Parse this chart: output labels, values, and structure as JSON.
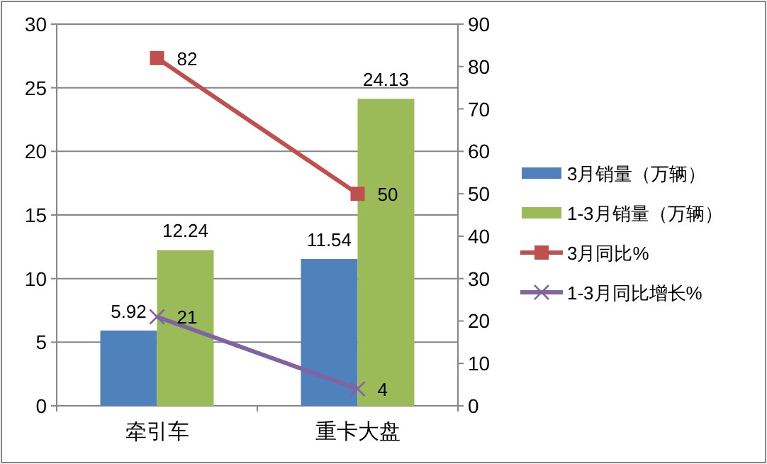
{
  "chart_data": {
    "type": "bar",
    "categories": [
      "牵引车",
      "重卡大盘"
    ],
    "series": [
      {
        "name": "3月销量（万辆）",
        "color": "#4f81bd",
        "values": [
          5.92,
          11.54
        ]
      },
      {
        "name": "1-3月销量（万辆）",
        "color": "#9bbb59",
        "values": [
          12.24,
          24.13
        ]
      },
      {
        "name": "3月同比%",
        "color": "#c0504d",
        "type": "line",
        "axis": "y2",
        "marker": "square",
        "values": [
          82,
          50
        ]
      },
      {
        "name": "1-3月同比增长%",
        "color": "#8064a2",
        "type": "line",
        "axis": "y2",
        "marker": "cross",
        "values": [
          21,
          4
        ]
      }
    ],
    "ylim": [
      0,
      30
    ],
    "yticks": [
      0,
      5,
      10,
      15,
      20,
      25,
      30
    ],
    "y2lim": [
      0,
      90
    ],
    "y2ticks": [
      0,
      10,
      20,
      30,
      40,
      50,
      60,
      70,
      80,
      90
    ],
    "grid": "y",
    "legend": "right",
    "data_labels": true
  }
}
